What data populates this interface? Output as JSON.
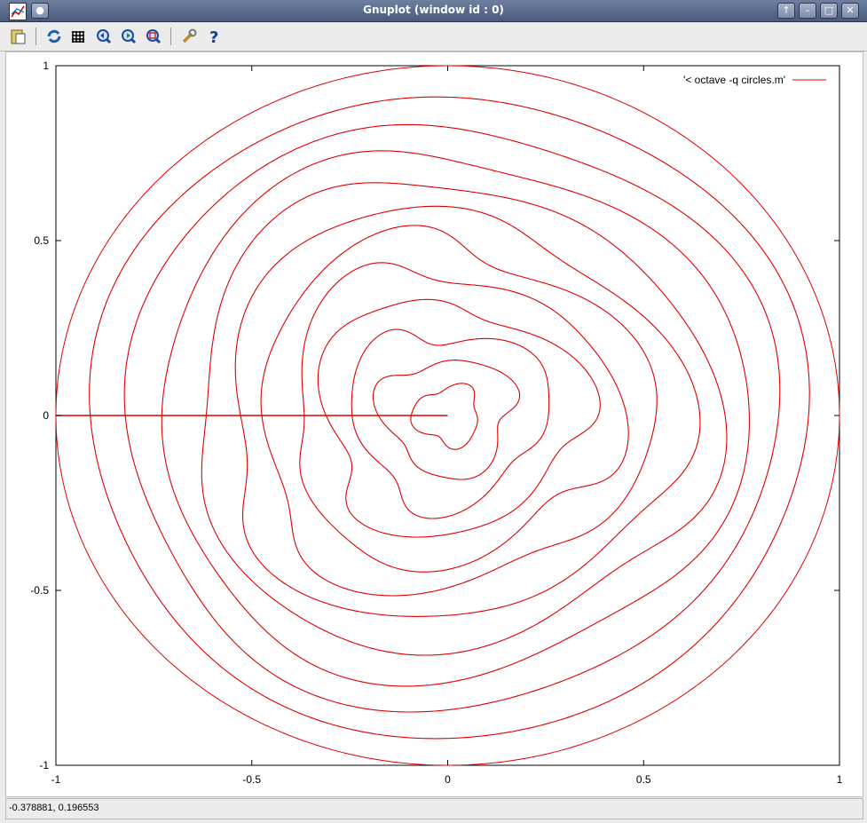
{
  "window": {
    "title": "Gnuplot (window id : 0)"
  },
  "titlebar_buttons": [
    "up-arrow-icon",
    "minimize-icon",
    "maximize-icon",
    "close-icon"
  ],
  "toolbar": {
    "tools": [
      {
        "name": "copy-to-clipboard-icon"
      },
      {
        "name": "replot-icon"
      },
      {
        "name": "grid-icon"
      },
      {
        "name": "zoom-previous-icon"
      },
      {
        "name": "zoom-next-icon"
      },
      {
        "name": "autoscale-icon"
      },
      {
        "name": "settings-wrench-icon"
      },
      {
        "name": "help-icon"
      }
    ]
  },
  "status": {
    "coords": "-0.378881,  0.196553"
  },
  "colors": {
    "curve": "#e00000",
    "accent": "#4a5a7c"
  },
  "chart_data": {
    "type": "line",
    "title": "",
    "xlabel": "",
    "ylabel": "",
    "xlim": [
      -1,
      1
    ],
    "ylim": [
      -1,
      1
    ],
    "x_ticks": [
      "-1",
      "-0.5",
      "0",
      "0.5",
      "1"
    ],
    "y_ticks": [
      "1",
      "0.5",
      "0",
      "-0.5",
      "-1"
    ],
    "grid": false,
    "legend": {
      "position": "top-right",
      "entries": [
        "'< octave -q circles.m'"
      ]
    },
    "series": [
      {
        "name": "'< octave -q circles.m'",
        "color": "#e00000",
        "kind": "swirled concentric circles",
        "count": 12
      }
    ]
  }
}
